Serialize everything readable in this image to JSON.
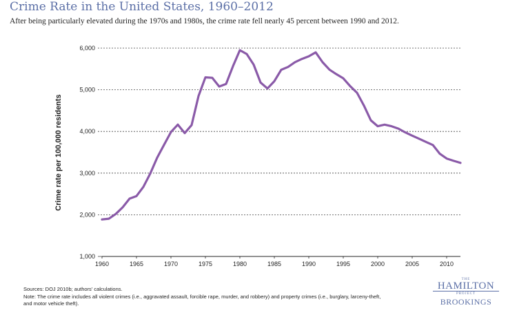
{
  "header": {
    "title": "Crime Rate in the United States, 1960–2012",
    "subtitle": "After being particularly elevated during the 1970s and 1980s, the crime rate fell nearly 45 percent between 1990 and 2012."
  },
  "footer": {
    "sources": "Sources: DOJ 2010b; authors' calculations.",
    "note_line1": "Note: The crime rate includes all violent crimes (i.e., aggravated assault, forcible rape, murder, and robbery) and property crimes (i.e., burglary, larceny-theft,",
    "note_line2": "and motor vehicle theft)."
  },
  "logo": {
    "the": "THE",
    "hamilton": "HAMILTON",
    "project": "PROJECT",
    "brookings": "BROOKINGS"
  },
  "colors": {
    "line": "#8a5aa8",
    "title": "#5b6fa6",
    "grid": "#444444"
  },
  "chart_data": {
    "type": "line",
    "title": "Crime Rate in the United States, 1960–2012",
    "xlabel": "",
    "ylabel": "Crime rate per 100,000 residents",
    "xlim": [
      1960,
      2012
    ],
    "ylim": [
      1000,
      6000
    ],
    "grid": "horizontal dashed",
    "x_ticks": [
      1960,
      1965,
      1970,
      1975,
      1980,
      1985,
      1990,
      1995,
      2000,
      2005,
      2010
    ],
    "y_ticks": [
      1000,
      2000,
      3000,
      4000,
      5000,
      6000
    ],
    "y_tick_labels": [
      "1,000",
      "2,000",
      "3,000",
      "4,000",
      "5,000",
      "6,000"
    ],
    "series": [
      {
        "x": [
          1960,
          1961,
          1962,
          1963,
          1964,
          1965,
          1966,
          1967,
          1968,
          1969,
          1970,
          1971,
          1972,
          1973,
          1974,
          1975,
          1976,
          1977,
          1978,
          1979,
          1980,
          1981,
          1982,
          1983,
          1984,
          1985,
          1986,
          1987,
          1988,
          1989,
          1990,
          1991,
          1992,
          1993,
          1994,
          1995,
          1996,
          1997,
          1998,
          1999,
          2000,
          2001,
          2002,
          2003,
          2004,
          2005,
          2006,
          2007,
          2008,
          2009,
          2010,
          2011,
          2012
        ],
        "values": [
          1887,
          1906,
          2020,
          2180,
          2388,
          2449,
          2670,
          2990,
          3370,
          3680,
          3985,
          4165,
          3961,
          4154,
          4850,
          5299,
          5287,
          5078,
          5140,
          5566,
          5950,
          5858,
          5604,
          5175,
          5031,
          5207,
          5480,
          5550,
          5664,
          5741,
          5803,
          5898,
          5661,
          5484,
          5374,
          5275,
          5087,
          4927,
          4620,
          4267,
          4125,
          4163,
          4125,
          4067,
          3977,
          3900,
          3825,
          3749,
          3675,
          3466,
          3350,
          3296,
          3246
        ]
      }
    ]
  }
}
